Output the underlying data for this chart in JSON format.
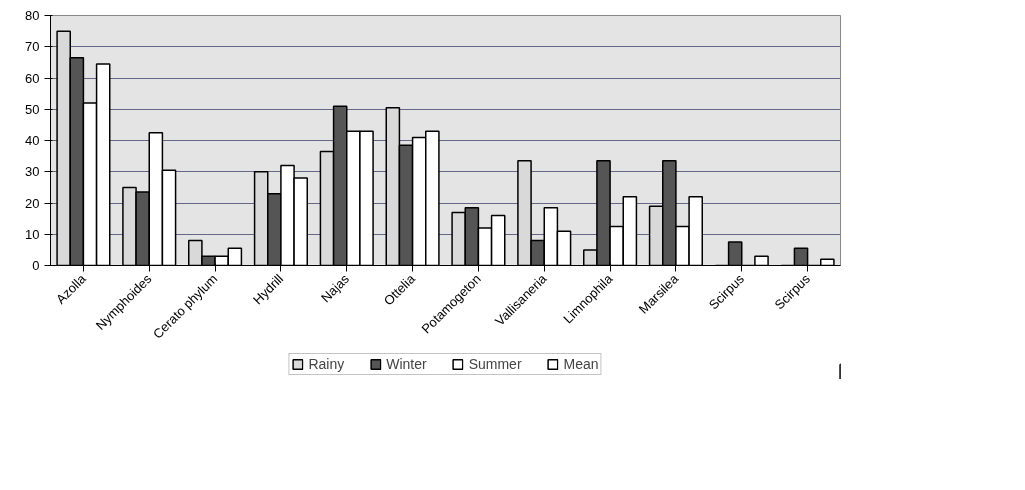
{
  "chart_data": {
    "type": "bar",
    "categories": [
      "Azolla",
      "Nymphoides",
      "Cerato phylum",
      "Hydrill",
      "Najas",
      "Ottelia",
      "Potamogeton",
      "Vallisaneria",
      "Limnophila",
      "Marsilea",
      "Scirpus",
      "Scirpus"
    ],
    "series": [
      {
        "name": "Rainy",
        "color": "#d9d9d9",
        "values": [
          75,
          25,
          8,
          30,
          36.5,
          50.5,
          17,
          33.5,
          5,
          19,
          null,
          null
        ]
      },
      {
        "name": "Winter",
        "color": "#555555",
        "values": [
          66.5,
          23.5,
          3,
          23,
          51,
          38.5,
          18.5,
          8,
          33.5,
          33.5,
          7.5,
          5.5
        ]
      },
      {
        "name": "Summer",
        "color": "#ffffff",
        "values": [
          52,
          42.5,
          3,
          32,
          43,
          41,
          12,
          18.5,
          12.5,
          12.5,
          null,
          null
        ]
      },
      {
        "name": "Mean",
        "color": "#ffffff",
        "values": [
          64.5,
          30.5,
          5.5,
          28,
          43,
          43,
          16,
          11,
          22,
          22,
          3,
          2
        ]
      }
    ],
    "ylim": [
      0,
      80
    ],
    "yticks": [
      0,
      10,
      20,
      30,
      40,
      50,
      60,
      70,
      80
    ],
    "grid": "y",
    "legend": "bottom"
  }
}
